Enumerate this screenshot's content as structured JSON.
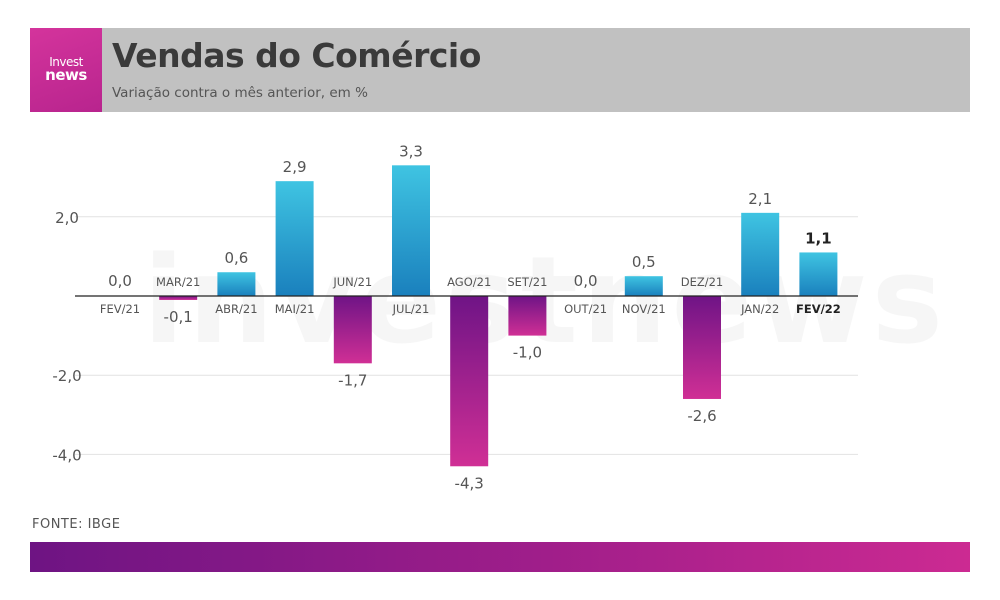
{
  "header": {
    "logo_line1": "Invest",
    "logo_line2": "news",
    "title": "Vendas do Comércio",
    "subtitle": "Variação contra o mês anterior, em %"
  },
  "source": "FONTE: IBGE",
  "watermark": "investnews",
  "colors": {
    "header_background": "#c1c1c1",
    "logo_background": "#c72c95",
    "positive_bar_top": "#3fc4e2",
    "positive_bar_bottom": "#1a80bd",
    "negative_bar_top": "#6f1486",
    "negative_bar_bottom": "#d02f95",
    "bottom_bar_left": "#6e1483",
    "bottom_bar_right": "#cc2a92"
  },
  "chart_data": {
    "type": "bar",
    "title": "Vendas do Comércio",
    "subtitle": "Variação contra o mês anterior, em %",
    "categories": [
      "FEV/21",
      "MAR/21",
      "ABR/21",
      "MAI/21",
      "JUN/21",
      "JUL/21",
      "AGO/21",
      "SET/21",
      "OUT/21",
      "NOV/21",
      "DEZ/21",
      "JAN/22",
      "FEV/22"
    ],
    "values": [
      0.0,
      -0.1,
      0.6,
      2.9,
      -1.7,
      3.3,
      -4.3,
      -1.0,
      0.0,
      0.5,
      -2.6,
      2.1,
      1.1
    ],
    "value_labels": [
      "0,0",
      "-0,1",
      "0,6",
      "2,9",
      "-1,7",
      "3,3",
      "-4,3",
      "-1,0",
      "0,0",
      "0,5",
      "-2,6",
      "2,1",
      "1,1"
    ],
    "highlighted_category": "FEV/22",
    "yticks": [
      -4.0,
      -2.0,
      2.0
    ],
    "ytick_labels": [
      "-4,0",
      "-2,0",
      "2,0"
    ],
    "ylim": [
      -5.0,
      4.0
    ],
    "xlabel": "",
    "ylabel": "",
    "grid": true,
    "legend": false
  }
}
